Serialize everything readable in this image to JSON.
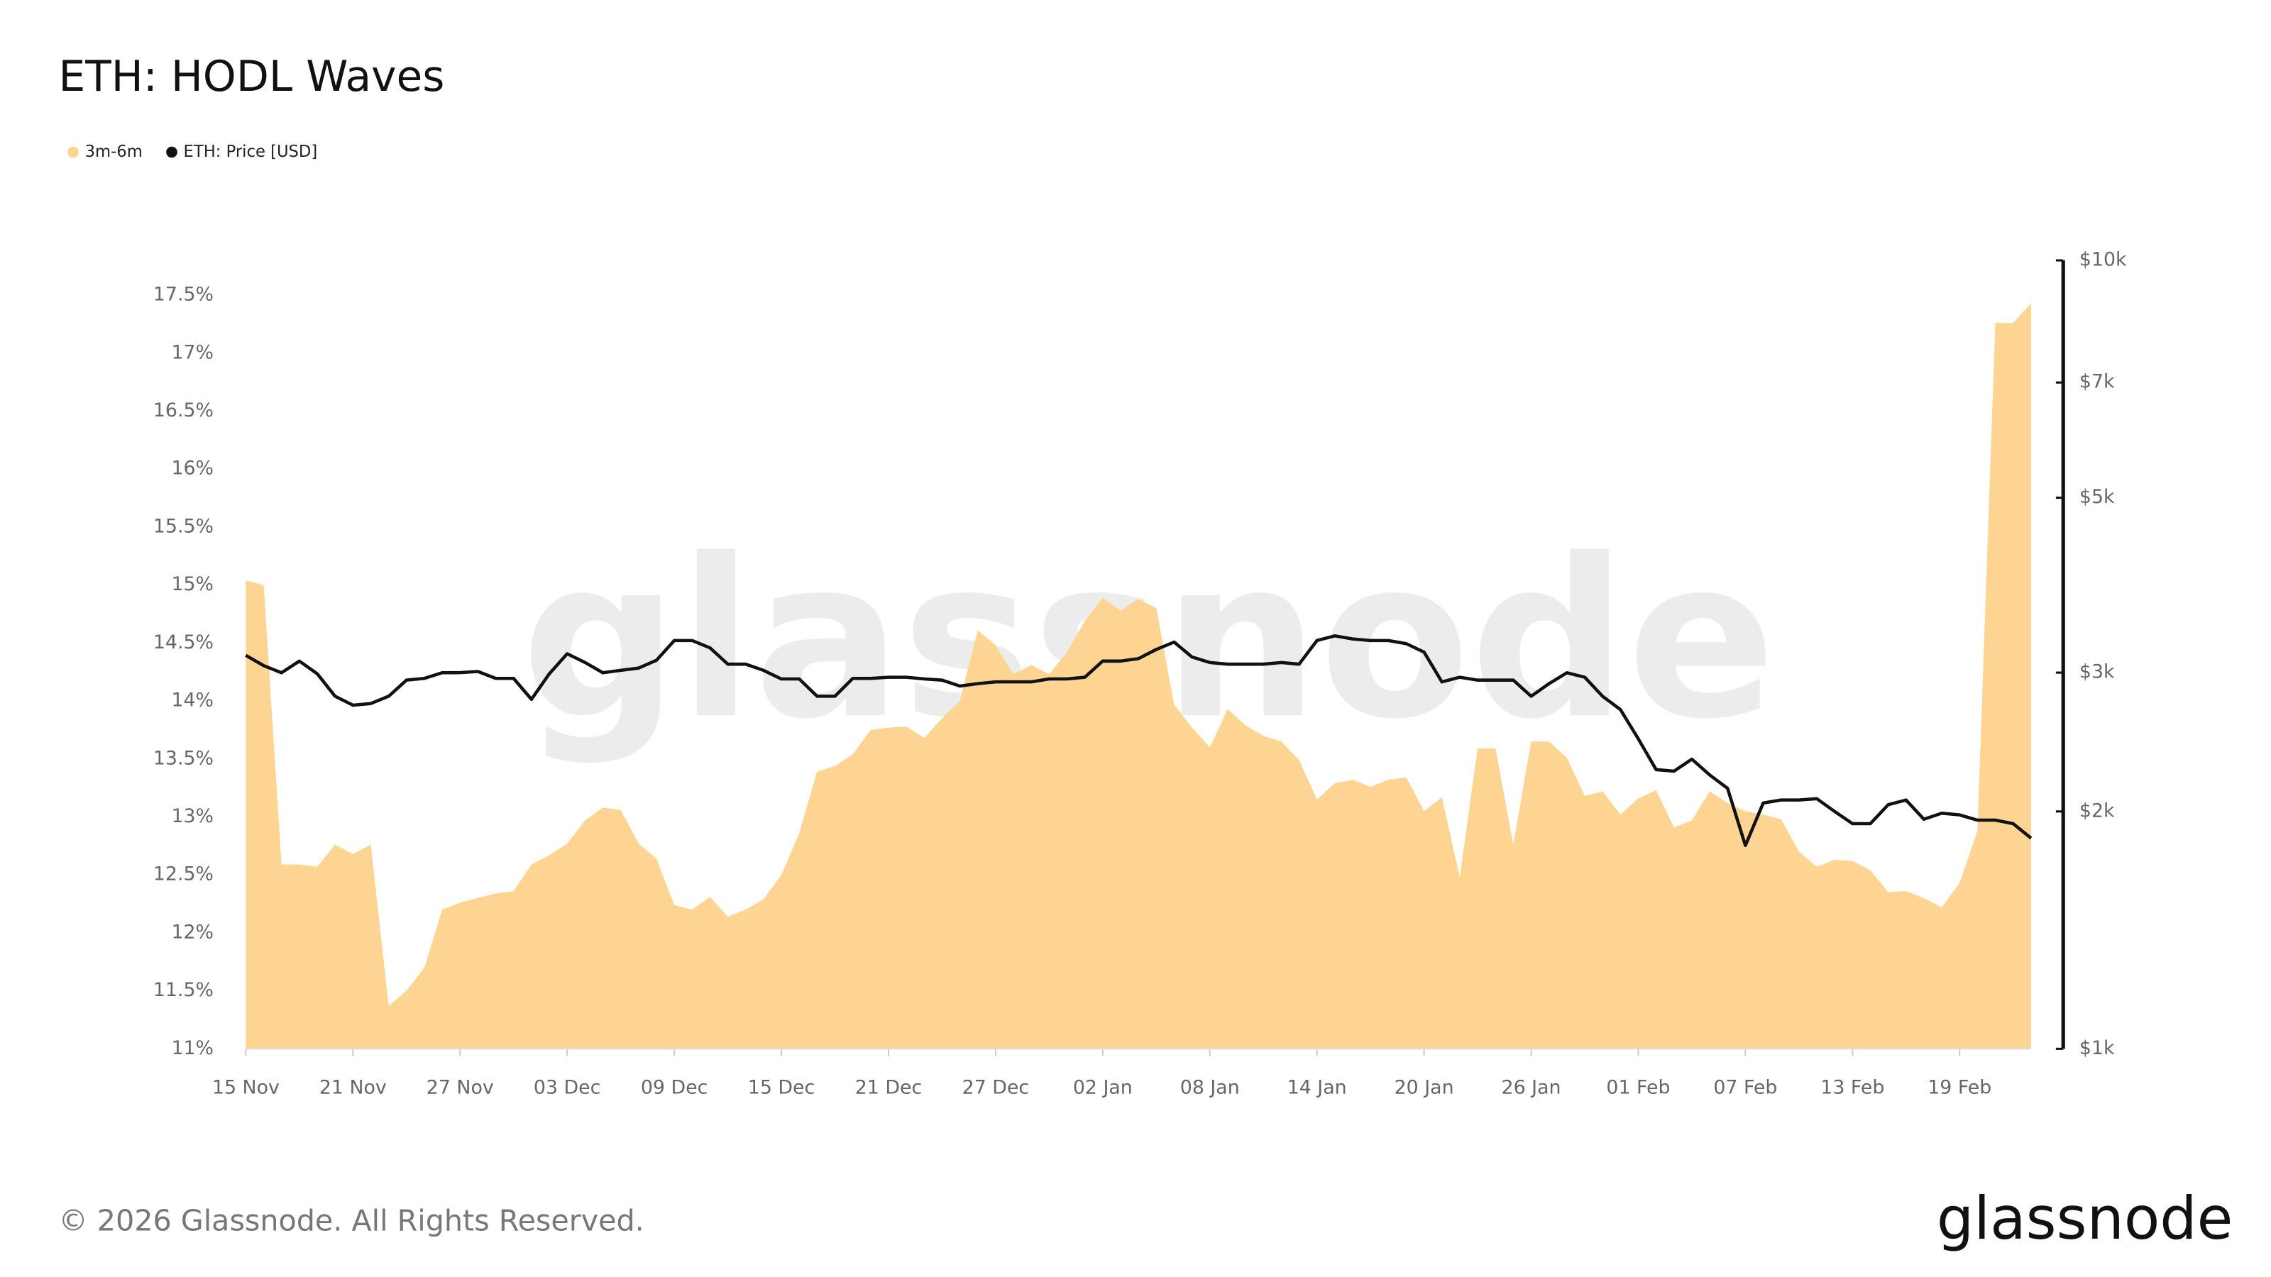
{
  "chart_data": {
    "type": "combo",
    "title": "ETH: HODL Waves",
    "categories": [
      "15 Nov",
      null,
      null,
      null,
      null,
      null,
      "21 Nov",
      null,
      null,
      null,
      null,
      null,
      "27 Nov",
      null,
      null,
      null,
      null,
      null,
      "03 Dec",
      null,
      null,
      null,
      null,
      null,
      "09 Dec",
      null,
      null,
      null,
      null,
      null,
      "15 Dec",
      null,
      null,
      null,
      null,
      null,
      "21 Dec",
      null,
      null,
      null,
      null,
      null,
      "27 Dec",
      null,
      null,
      null,
      null,
      null,
      "02 Jan",
      null,
      null,
      null,
      null,
      null,
      "08 Jan",
      null,
      null,
      null,
      null,
      null,
      "14 Jan",
      null,
      null,
      null,
      null,
      null,
      "20 Jan",
      null,
      null,
      null,
      null,
      null,
      "26 Jan",
      null,
      null,
      null,
      null,
      null,
      "01 Feb",
      null,
      null,
      null,
      null,
      null,
      "07 Feb",
      null,
      null,
      null,
      null,
      null,
      "13 Feb",
      null,
      null,
      null,
      null,
      null,
      "19 Feb",
      null,
      null,
      null,
      null
    ],
    "series": [
      {
        "name": "3m-6m",
        "type": "area",
        "color": "#fdd492",
        "values": [
          15.04,
          15.0,
          12.59,
          12.59,
          12.57,
          12.76,
          12.68,
          12.76,
          11.37,
          11.5,
          11.7,
          12.2,
          12.26,
          12.3,
          12.34,
          12.36,
          12.59,
          12.67,
          12.77,
          12.97,
          13.08,
          13.06,
          12.77,
          12.64,
          12.24,
          12.2,
          12.31,
          12.14,
          12.2,
          12.29,
          12.5,
          12.86,
          13.39,
          13.44,
          13.54,
          13.75,
          13.77,
          13.78,
          13.68,
          13.85,
          14.0,
          14.61,
          14.48,
          14.23,
          14.31,
          14.23,
          14.42,
          14.69,
          14.89,
          14.78,
          14.88,
          14.8,
          13.97,
          13.77,
          13.6,
          13.93,
          13.79,
          13.7,
          13.65,
          13.49,
          13.15,
          13.29,
          13.32,
          13.26,
          13.32,
          13.34,
          13.05,
          13.17,
          12.48,
          13.59,
          13.59,
          12.76,
          13.65,
          13.65,
          13.51,
          13.18,
          13.22,
          13.02,
          13.16,
          13.23,
          12.91,
          12.97,
          13.22,
          13.12,
          13.05,
          13.02,
          12.98,
          12.7,
          12.57,
          12.63,
          12.62,
          12.54,
          12.35,
          12.36,
          12.3,
          12.22,
          12.43,
          12.88,
          17.26,
          17.26,
          17.43
        ]
      },
      {
        "name": "ETH: Price [USD]",
        "type": "line",
        "axis": "y2",
        "color": "#111111",
        "values": [
          3155,
          3062,
          2999,
          3103,
          2990,
          2800,
          2728,
          2741,
          2800,
          2935,
          2950,
          2999,
          3000,
          3010,
          2950,
          2950,
          2775,
          2990,
          3170,
          3090,
          2999,
          3020,
          3040,
          3110,
          3295,
          3295,
          3225,
          3075,
          3075,
          3020,
          2945,
          2945,
          2800,
          2800,
          2950,
          2950,
          2960,
          2960,
          2945,
          2935,
          2885,
          2905,
          2920,
          2920,
          2920,
          2945,
          2945,
          2960,
          3103,
          3103,
          3125,
          3210,
          3280,
          3140,
          3090,
          3075,
          3075,
          3075,
          3090,
          3075,
          3295,
          3340,
          3310,
          3295,
          3295,
          3265,
          3185,
          2920,
          2960,
          2935,
          2935,
          2935,
          2800,
          2905,
          2999,
          2960,
          2800,
          2693,
          2473,
          2260,
          2250,
          2330,
          2225,
          2140,
          1811,
          2050,
          2068,
          2068,
          2076,
          2000,
          1930,
          1930,
          2040,
          2068,
          1955,
          1990,
          1980,
          1950,
          1950,
          1930,
          1850
        ]
      }
    ],
    "ylim": [
      11,
      17.8
    ],
    "yticks": [
      {
        "value": 11,
        "label": "11%"
      },
      {
        "value": 11.5,
        "label": "11.5%"
      },
      {
        "value": 12,
        "label": "12%"
      },
      {
        "value": 12.5,
        "label": "12.5%"
      },
      {
        "value": 13,
        "label": "13%"
      },
      {
        "value": 13.5,
        "label": "13.5%"
      },
      {
        "value": 14,
        "label": "14%"
      },
      {
        "value": 14.5,
        "label": "14.5%"
      },
      {
        "value": 15,
        "label": "15%"
      },
      {
        "value": 15.5,
        "label": "15.5%"
      },
      {
        "value": 16,
        "label": "16%"
      },
      {
        "value": 16.5,
        "label": "16.5%"
      },
      {
        "value": 17,
        "label": "17%"
      },
      {
        "value": 17.5,
        "label": "17.5%"
      }
    ],
    "y2lim": [
      1000,
      10000
    ],
    "y2log": true,
    "y2ticks": [
      {
        "value": 1000,
        "label": "$1k"
      },
      {
        "value": 2000,
        "label": "$2k"
      },
      {
        "value": 3000,
        "label": "$3k"
      },
      {
        "value": 5000,
        "label": "$5k"
      },
      {
        "value": 7000,
        "label": "$7k"
      },
      {
        "value": 10000,
        "label": "$10k"
      }
    ],
    "watermark": "glassnode",
    "copyright": "© 2026 Glassnode. All Rights Reserved.",
    "logo": "glassnode"
  }
}
